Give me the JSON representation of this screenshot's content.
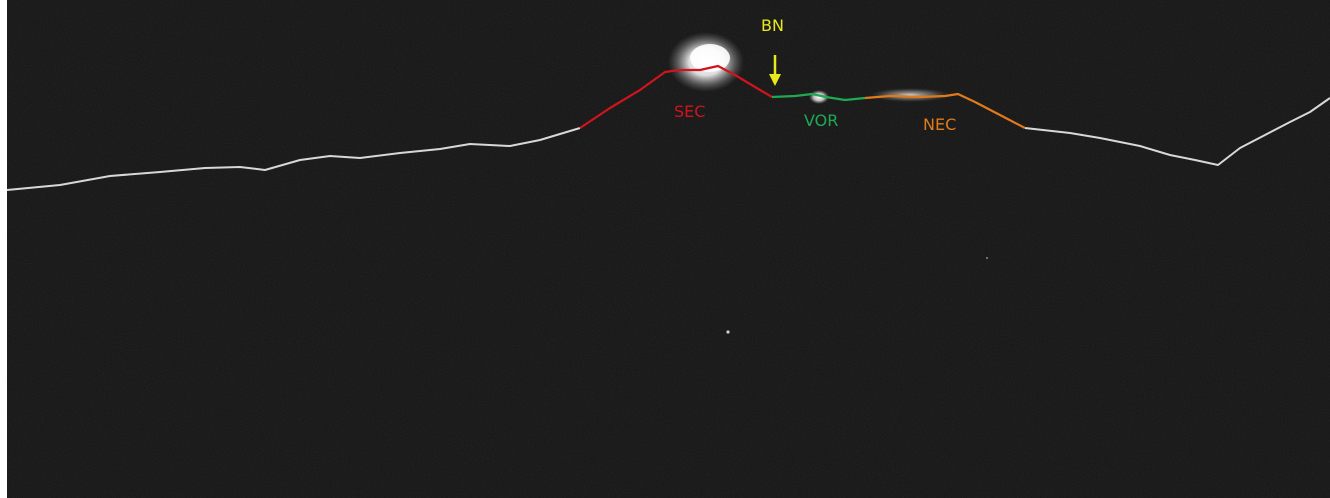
{
  "colors": {
    "background": "#141414",
    "ridge": "#d8d8d8",
    "sec": "#d0141e",
    "vor": "#1faa52",
    "nec": "#e07a1a",
    "bn": "#e8e81e",
    "glow": "#ffffff"
  },
  "labels": {
    "sec": "SEC",
    "vor": "VOR",
    "nec": "NEC",
    "bn": "BN"
  },
  "icons": {
    "bn_marker": "arrow-down-icon"
  }
}
